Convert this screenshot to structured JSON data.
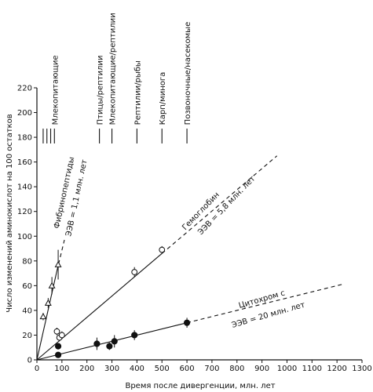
{
  "chart_data": {
    "type": "scatter",
    "xlabel": "Время после  дивергенции, млн. лет",
    "ylabel": "Число изменений аминокислот  на 100 остатков",
    "xlim": [
      0,
      1300
    ],
    "ylim": [
      0,
      220
    ],
    "x_ticks": [
      0,
      100,
      200,
      300,
      400,
      500,
      600,
      700,
      800,
      900,
      1000,
      1100,
      1200,
      1300
    ],
    "y_ticks": [
      0,
      20,
      40,
      60,
      80,
      100,
      120,
      140,
      160,
      180,
      200,
      220
    ],
    "grid": false,
    "legend": "none",
    "divergence_markers": [
      {
        "label": "Млекопитающие",
        "x": [
          25,
          40,
          55,
          70
        ]
      },
      {
        "label": "Птицы/рептилии",
        "x": [
          250
        ]
      },
      {
        "label": "Млекопитающие/рептилии",
        "x": [
          300
        ]
      },
      {
        "label": "Рептилии/рыбы",
        "x": [
          400
        ]
      },
      {
        "label": "Карп/минога",
        "x": [
          500
        ]
      },
      {
        "label": "Позвоночные/насекомые",
        "x": [
          600
        ]
      }
    ],
    "series": [
      {
        "name": "Фибринопептиды",
        "annotation": "ЭЭВ = 1,1 млн. лет",
        "marker": "triangle-open",
        "points": [
          {
            "x": 25,
            "y": 35,
            "err": 3
          },
          {
            "x": 45,
            "y": 46,
            "err": 4
          },
          {
            "x": 60,
            "y": 60,
            "err": 7
          },
          {
            "x": 85,
            "y": 77,
            "err": 12
          }
        ],
        "fit": {
          "x0": 0,
          "y0": 0,
          "x1": 80,
          "y1": 72
        },
        "extrapolation": {
          "x0": 80,
          "y0": 72,
          "x1": 110,
          "y1": 97
        }
      },
      {
        "name": "Гемоглобин",
        "annotation": "ЭЭВ = 5,8  млн. лет",
        "marker": "circle-open",
        "points": [
          {
            "x": 80,
            "y": 23,
            "err": 3
          },
          {
            "x": 90,
            "y": 18,
            "err": 3
          },
          {
            "x": 100,
            "y": 20,
            "err": 3
          },
          {
            "x": 390,
            "y": 71,
            "err": 4
          },
          {
            "x": 500,
            "y": 89,
            "err": 3
          }
        ],
        "fit": {
          "x0": 0,
          "y0": 0,
          "x1": 500,
          "y1": 86
        },
        "extrapolation": {
          "x0": 500,
          "y0": 86,
          "x1": 960,
          "y1": 165
        }
      },
      {
        "name": "Цитохром с",
        "annotation": "ЭЭВ = 20 млн. лет",
        "marker": "circle-filled",
        "points": [
          {
            "x": 85,
            "y": 4,
            "err": 2
          },
          {
            "x": 85,
            "y": 11,
            "err": 2
          },
          {
            "x": 240,
            "y": 13,
            "err": 5
          },
          {
            "x": 290,
            "y": 11,
            "err": 3
          },
          {
            "x": 310,
            "y": 15,
            "err": 5
          },
          {
            "x": 390,
            "y": 20,
            "err": 4
          },
          {
            "x": 600,
            "y": 30,
            "err": 4
          }
        ],
        "fit": {
          "x0": 0,
          "y0": 0,
          "x1": 600,
          "y1": 30
        },
        "extrapolation": {
          "x0": 600,
          "y0": 30,
          "x1": 1220,
          "y1": 61
        }
      }
    ]
  }
}
